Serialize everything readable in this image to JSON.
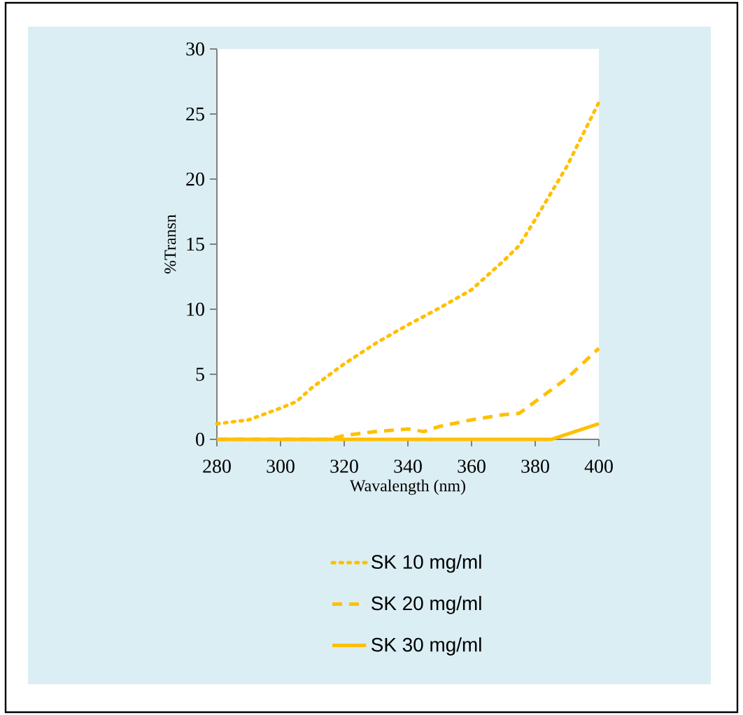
{
  "chart_data": {
    "type": "line",
    "xlabel": "Wavalength (nm)",
    "ylabel": "%Transn",
    "xlim": [
      280,
      400
    ],
    "xticks": [
      280,
      300,
      320,
      340,
      360,
      380,
      400
    ],
    "ylim": [
      0,
      30
    ],
    "yticks": [
      0,
      5,
      10,
      15,
      20,
      25,
      30
    ],
    "grid": false,
    "legend": "bottom",
    "marker": "none",
    "series": [
      {
        "name": "SK 10 mg/ml",
        "color": "#ffc000",
        "line_style": "dotted",
        "x": [
          280,
          290,
          300,
          305,
          310,
          320,
          330,
          340,
          350,
          360,
          370,
          375,
          380,
          390,
          400
        ],
        "values": [
          1.2,
          1.5,
          2.4,
          2.9,
          4.0,
          5.8,
          7.4,
          8.8,
          10.1,
          11.5,
          13.7,
          14.9,
          16.9,
          21.0,
          25.9
        ]
      },
      {
        "name": "SK 20 mg/ml",
        "color": "#ffc000",
        "line_style": "dashed",
        "x": [
          280,
          300,
          315,
          320,
          330,
          340,
          345,
          350,
          360,
          370,
          375,
          380,
          390,
          400
        ],
        "values": [
          0,
          0,
          0,
          0.3,
          0.6,
          0.8,
          0.6,
          1.0,
          1.5,
          1.9,
          2.0,
          2.9,
          4.7,
          7.0
        ]
      },
      {
        "name": "SK 30 mg/ml",
        "color": "#ffc000",
        "line_style": "solid",
        "x": [
          280,
          300,
          320,
          340,
          360,
          380,
          385,
          390,
          400
        ],
        "values": [
          0,
          0,
          0,
          0,
          0,
          0,
          0,
          0.4,
          1.2
        ]
      }
    ]
  }
}
